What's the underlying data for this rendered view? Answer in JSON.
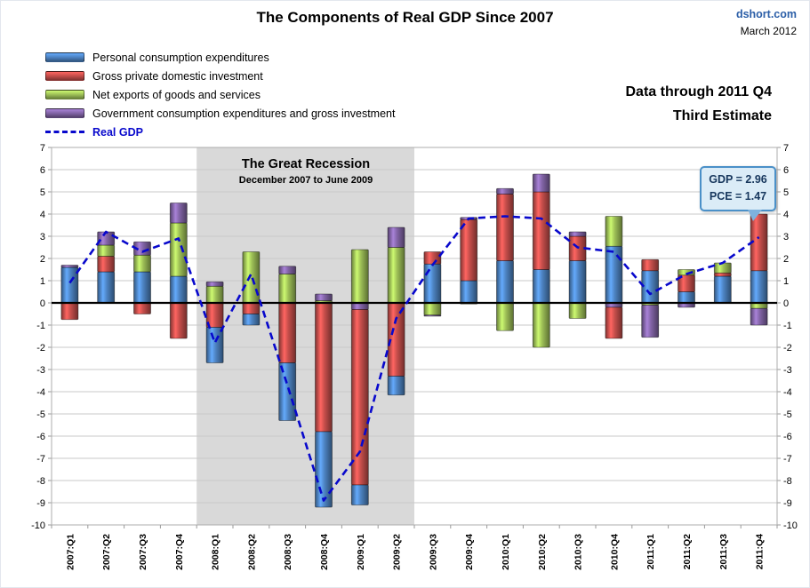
{
  "header": {
    "title": "The Components of Real GDP Since 2007",
    "site": "dshort.com",
    "date": "March 2012"
  },
  "subtitle": {
    "line1": "Data through 2011 Q4",
    "line2": "Third Estimate"
  },
  "legend": {
    "items": [
      {
        "key": "pce",
        "label": "Personal consumption expenditures",
        "color": "#4a7ebb"
      },
      {
        "key": "gpdi",
        "label": "Gross private domestic investment",
        "color": "#be4b48"
      },
      {
        "key": "netx",
        "label": "Net exports of goods and services",
        "color": "#98b954"
      },
      {
        "key": "gov",
        "label": "Government consumption expenditures and gross investment",
        "color": "#7d60a0"
      }
    ],
    "line": {
      "label": "Real GDP",
      "color": "#0808cc"
    }
  },
  "recession": {
    "title": "The Great Recession",
    "subtitle": "December 2007 to June 2009",
    "start_index": 4,
    "end_index": 9,
    "fill": "#d9d9d9"
  },
  "annotation": {
    "line1": "GDP = 2.96",
    "line2": "PCE = 1.47"
  },
  "chart_data": {
    "type": "bar",
    "subtype": "stacked-bars-with-line",
    "title": "The Components of Real GDP Since 2007",
    "xlabel": "",
    "ylabel": "",
    "ylim": [
      -10,
      7
    ],
    "yticks": [
      7,
      6,
      5,
      4,
      3,
      2,
      1,
      0,
      -1,
      -2,
      -3,
      -4,
      -5,
      -6,
      -7,
      -8,
      -9,
      -10
    ],
    "grid": true,
    "legend_position": "top-left",
    "categories": [
      "2007:Q1",
      "2007:Q2",
      "2007:Q3",
      "2007:Q4",
      "2008:Q1",
      "2008:Q2",
      "2008:Q3",
      "2008:Q4",
      "2009:Q1",
      "2009:Q2",
      "2009:Q3",
      "2009:Q4",
      "2010:Q1",
      "2010:Q2",
      "2010:Q3",
      "2010:Q4",
      "2011:Q1",
      "2011:Q2",
      "2011:Q3",
      "2011:Q4"
    ],
    "series": [
      {
        "key": "pce",
        "name": "Personal consumption expenditures",
        "values": [
          1.6,
          1.4,
          1.4,
          1.2,
          -1.6,
          -0.5,
          -2.6,
          -3.4,
          -0.9,
          -0.85,
          1.75,
          1.0,
          1.9,
          1.5,
          1.9,
          2.55,
          1.45,
          0.5,
          1.2,
          1.45
        ]
      },
      {
        "key": "gpdi",
        "name": "Gross private domestic investment",
        "values": [
          -0.75,
          0.7,
          -0.5,
          -1.6,
          -1.1,
          -0.5,
          -2.7,
          -5.8,
          -7.9,
          -3.3,
          0.55,
          2.75,
          3.0,
          3.5,
          1.1,
          -1.4,
          0.5,
          0.75,
          0.15,
          2.55
        ]
      },
      {
        "key": "netx",
        "name": "Net exports of goods and services",
        "values": [
          0.0,
          0.5,
          0.75,
          2.4,
          0.75,
          2.3,
          1.3,
          0.1,
          2.4,
          2.5,
          -0.55,
          -0.05,
          -1.25,
          -2.0,
          -0.7,
          1.35,
          -0.1,
          0.25,
          0.45,
          -0.25
        ]
      },
      {
        "key": "gov",
        "name": "Government consumption expenditures and gross investment",
        "values": [
          0.1,
          0.6,
          0.6,
          0.9,
          0.2,
          0.0,
          0.35,
          0.3,
          -0.3,
          0.9,
          -0.05,
          0.1,
          0.25,
          0.8,
          0.2,
          -0.2,
          -1.45,
          -0.2,
          0.0,
          -0.75
        ]
      }
    ],
    "line": {
      "name": "Real GDP",
      "values": [
        0.9,
        3.2,
        2.3,
        2.9,
        -1.8,
        1.3,
        -3.7,
        -8.9,
        -6.7,
        -0.7,
        1.7,
        3.8,
        3.9,
        3.8,
        2.5,
        2.3,
        0.4,
        1.3,
        1.8,
        2.96
      ]
    },
    "stack_order_positive": [
      "pce",
      "gpdi",
      "netx",
      "gov"
    ],
    "stack_order_negative": [
      "netx",
      "gov",
      "gpdi",
      "pce"
    ]
  }
}
